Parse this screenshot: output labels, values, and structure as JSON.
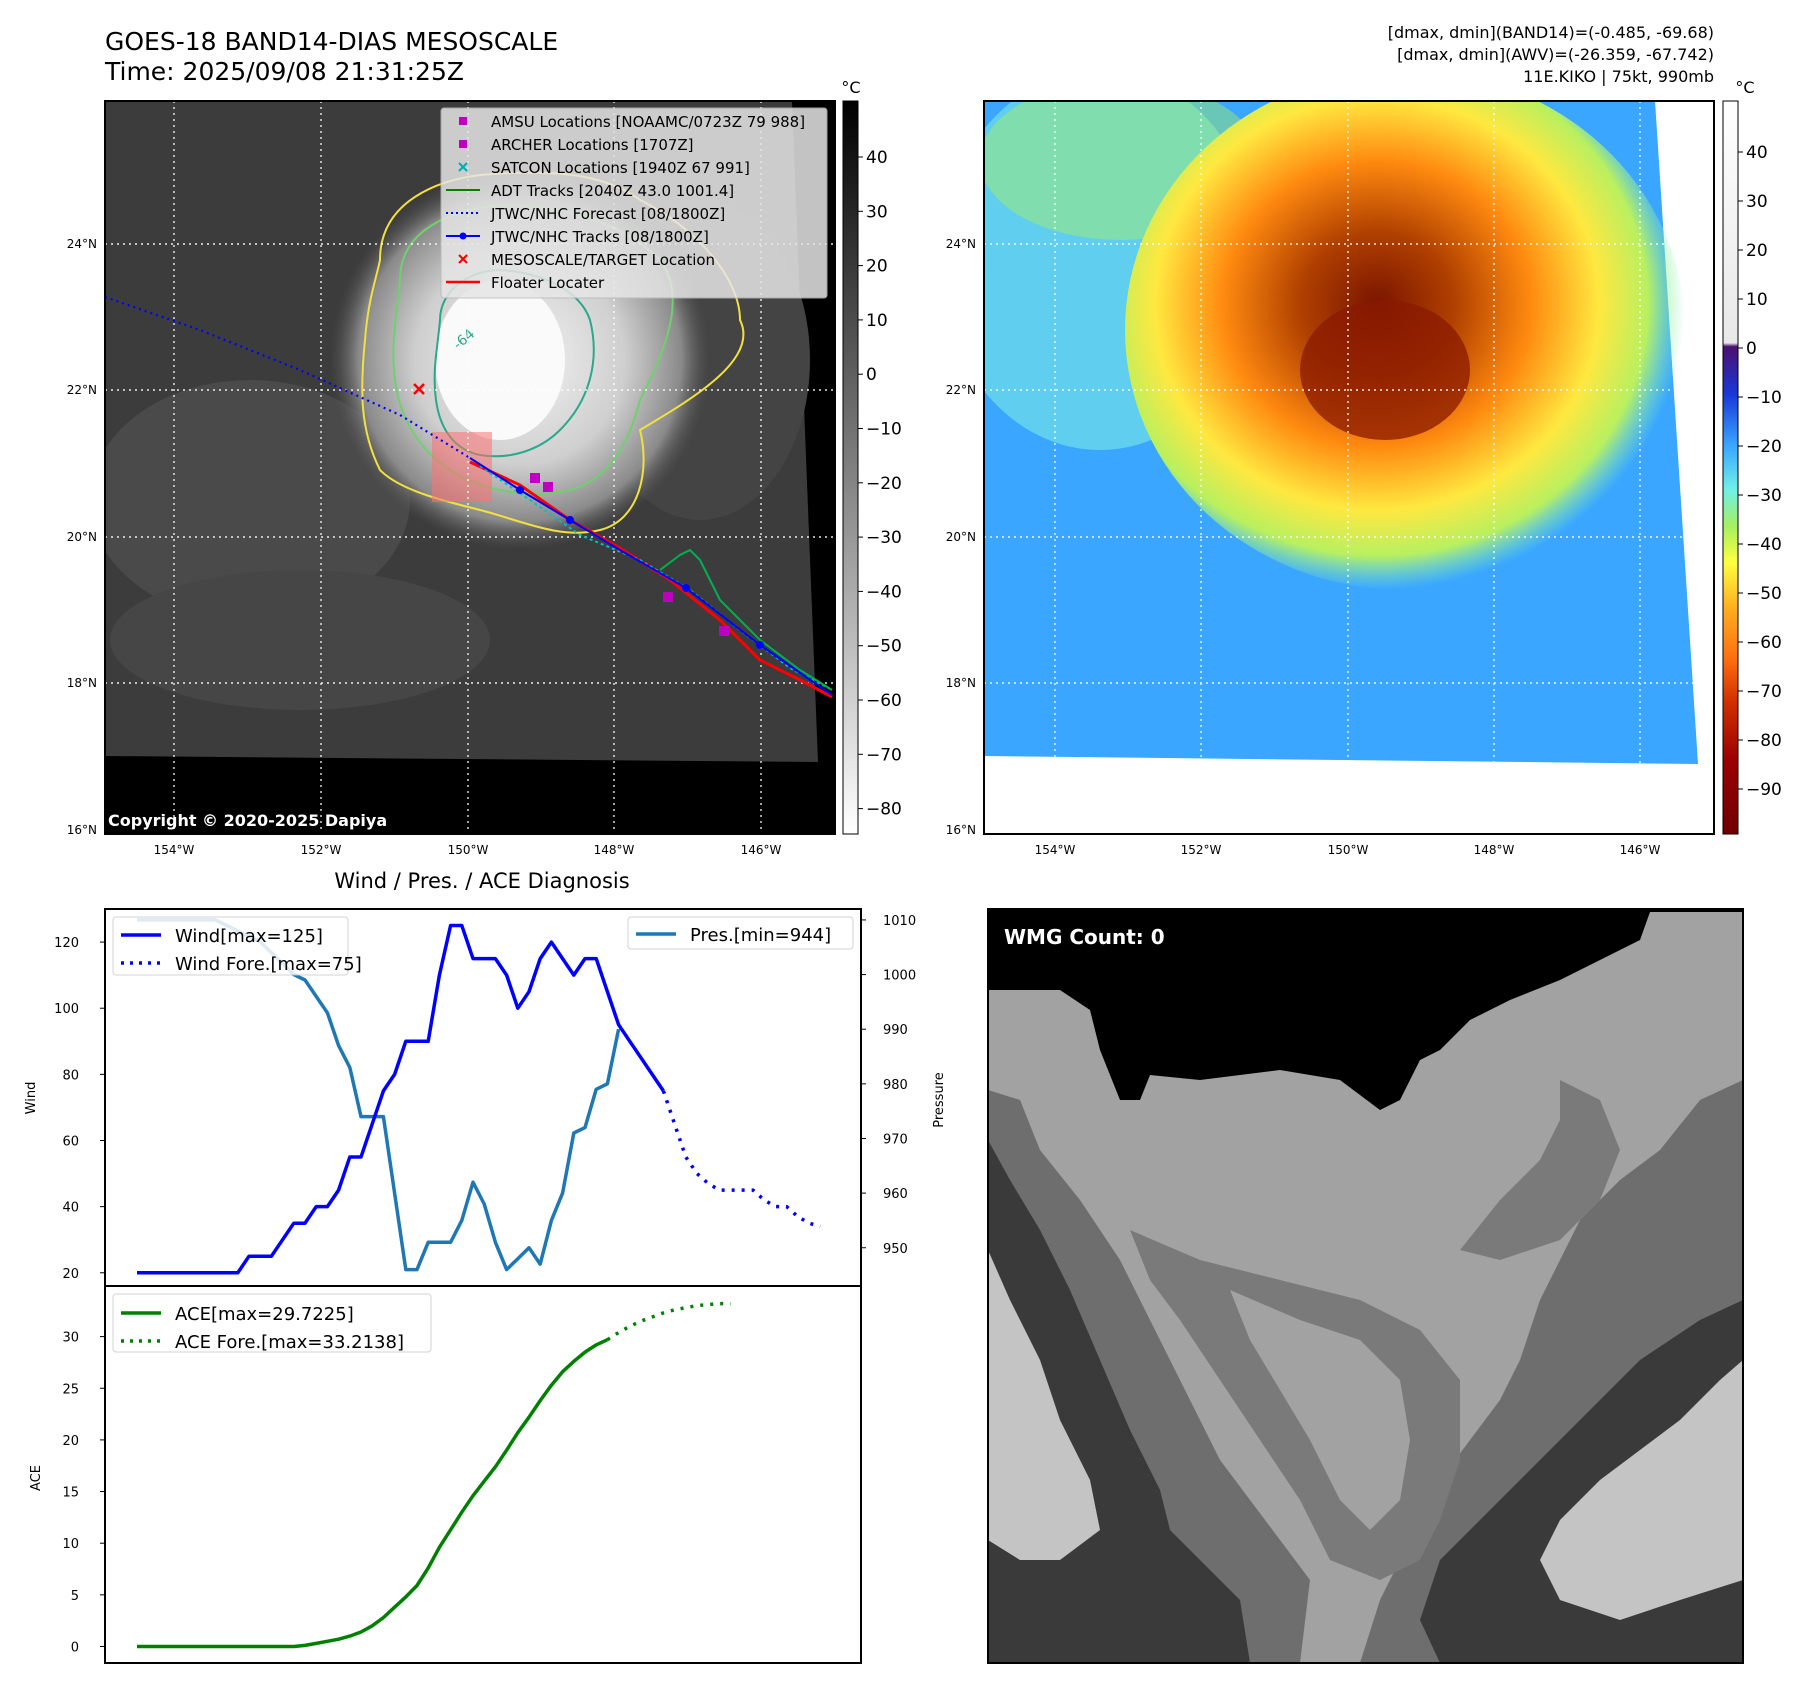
{
  "header": {
    "title_line1": "GOES-18 BAND14-DIAS MESOSCALE",
    "title_line2": "Time: 2025/09/08 21:31:25Z",
    "info_line1": "[dmax, dmin](BAND14)=(-0.485, -69.68)",
    "info_line2": "[dmax, dmin](AWV)=(-26.359, -67.742)",
    "info_line3": "11E.KIKO | 75kt, 990mb"
  },
  "maps": {
    "lat_ticks": [
      "24°N",
      "22°N",
      "20°N",
      "18°N",
      "16°N"
    ],
    "lon_ticks": [
      "154°W",
      "152°W",
      "150°W",
      "148°W",
      "146°W"
    ],
    "copyright": "Copyright © 2020-2025 Dapiya",
    "contour_label": "-64",
    "left_colorbar": {
      "unit": "°C",
      "ticks": [
        "40",
        "30",
        "20",
        "10",
        "0",
        "−10",
        "−20",
        "−30",
        "−40",
        "−50",
        "−60",
        "−70",
        "−80"
      ]
    },
    "right_colorbar": {
      "unit": "°C",
      "ticks": [
        "40",
        "30",
        "20",
        "10",
        "0",
        "−10",
        "−20",
        "−30",
        "−40",
        "−50",
        "−60",
        "−70",
        "−80",
        "−90"
      ]
    },
    "legend": [
      {
        "label": "AMSU Locations [NOAAMC/0723Z 79 988]",
        "color": "#c000c0",
        "marker": "square"
      },
      {
        "label": "ARCHER Locations [1707Z]",
        "color": "#c000c0",
        "marker": "square"
      },
      {
        "label": "SATCON Locations [1940Z 67 991]",
        "color": "#00b0b0",
        "marker": "x"
      },
      {
        "label": "ADT Tracks [2040Z 43.0 1001.4]",
        "color": "#008000",
        "marker": "line"
      },
      {
        "label": "JTWC/NHC Forecast [08/1800Z]",
        "color": "#0000ff",
        "marker": "dotted"
      },
      {
        "label": "JTWC/NHC Tracks [08/1800Z]",
        "color": "#0000ff",
        "marker": "line-dot"
      },
      {
        "label": "MESOSCALE/TARGET Location",
        "color": "#ff0000",
        "marker": "x"
      },
      {
        "label": "Floater Locater",
        "color": "#ff0000",
        "marker": "line"
      }
    ]
  },
  "wmg": {
    "label": "WMG Count: 0"
  },
  "chart_data": [
    {
      "type": "line",
      "title": "Wind / Pres. / ACE Diagnosis",
      "ylabel": "Wind",
      "y2label": "Pressure",
      "ylim": [
        16,
        130
      ],
      "y2lim": [
        943,
        1012
      ],
      "yticks": [
        "20",
        "40",
        "60",
        "80",
        "100",
        "120"
      ],
      "y2ticks": [
        "950",
        "960",
        "970",
        "980",
        "990",
        "1000",
        "1010"
      ],
      "series": [
        {
          "name": "Wind[max=125]",
          "color": "#0000ff",
          "style": "solid",
          "values": [
            20,
            20,
            20,
            20,
            20,
            20,
            20,
            20,
            20,
            20,
            25,
            25,
            25,
            30,
            35,
            35,
            40,
            40,
            45,
            55,
            55,
            65,
            75,
            80,
            90,
            90,
            90,
            110,
            125,
            125,
            115,
            115,
            115,
            110,
            100,
            105,
            115,
            120,
            115,
            110,
            115,
            115,
            105,
            95,
            90,
            85,
            80,
            75
          ]
        },
        {
          "name": "Wind Fore.[max=75]",
          "color": "#0000ff",
          "style": "dotted",
          "values": [
            75,
            65,
            55,
            50,
            47,
            45,
            45,
            45,
            45,
            42,
            40,
            40,
            37,
            35,
            34
          ]
        },
        {
          "name": "Pres.[min=944]",
          "color": "#1f77b4",
          "style": "solid",
          "values": [
            1010,
            1010,
            1010,
            1010,
            1010,
            1010,
            1010,
            1010,
            1009,
            1008,
            1007,
            1006,
            1004,
            1002,
            1000,
            999,
            996,
            993,
            987,
            983,
            974,
            974,
            974,
            960,
            946,
            946,
            951,
            951,
            951,
            955,
            962,
            958,
            951,
            946,
            948,
            950,
            947,
            955,
            960,
            971,
            972,
            979,
            980,
            990
          ]
        }
      ]
    },
    {
      "type": "line",
      "ylabel": "ACE",
      "ylim": [
        -1.6,
        34.9
      ],
      "yticks": [
        "0",
        "5",
        "10",
        "15",
        "20",
        "25",
        "30"
      ],
      "series": [
        {
          "name": "ACE[max=29.7225]",
          "color": "#008000",
          "style": "solid",
          "values": [
            0,
            0,
            0,
            0,
            0,
            0,
            0,
            0,
            0,
            0,
            0,
            0,
            0,
            0,
            0,
            0.1,
            0.3,
            0.5,
            0.7,
            1.0,
            1.4,
            2.0,
            2.8,
            3.8,
            4.8,
            5.9,
            7.6,
            9.6,
            11.3,
            13.0,
            14.6,
            16.0,
            17.4,
            19.0,
            20.7,
            22.2,
            23.8,
            25.3,
            26.6,
            27.6,
            28.5,
            29.2,
            29.7
          ]
        },
        {
          "name": "ACE Fore.[max=33.2138]",
          "color": "#008000",
          "style": "dotted",
          "values": [
            29.7,
            30.4,
            31.0,
            31.5,
            31.9,
            32.3,
            32.6,
            32.8,
            33.0,
            33.1,
            33.2,
            33.2
          ]
        }
      ]
    }
  ]
}
